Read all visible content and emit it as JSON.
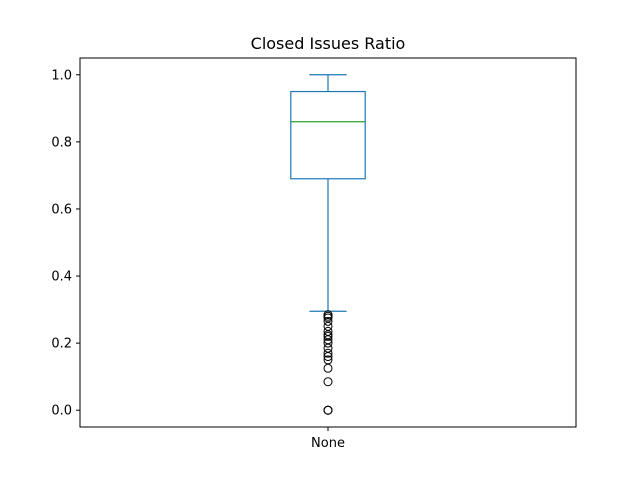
{
  "chart_data": {
    "type": "box",
    "title": "Closed Issues Ratio",
    "categories": [
      "None"
    ],
    "ylim": [
      -0.05,
      1.05
    ],
    "yticks": [
      0.0,
      0.2,
      0.4,
      0.6,
      0.8,
      1.0
    ],
    "ytick_labels": [
      "0.0",
      "0.2",
      "0.4",
      "0.6",
      "0.8",
      "1.0"
    ],
    "grid": false,
    "series": [
      {
        "whisker_low": 0.295,
        "q1": 0.69,
        "median": 0.86,
        "q3": 0.95,
        "whisker_high": 1.0,
        "outliers": [
          0.285,
          0.28,
          0.275,
          0.265,
          0.25,
          0.235,
          0.225,
          0.22,
          0.21,
          0.2,
          0.185,
          0.17,
          0.16,
          0.15,
          0.125,
          0.085,
          0.0,
          0.0,
          0.0
        ]
      }
    ],
    "colors": {
      "box": "#1f77b4",
      "median": "#2ca02c",
      "outlier_edge": "#000000",
      "axes": "#000000"
    }
  }
}
